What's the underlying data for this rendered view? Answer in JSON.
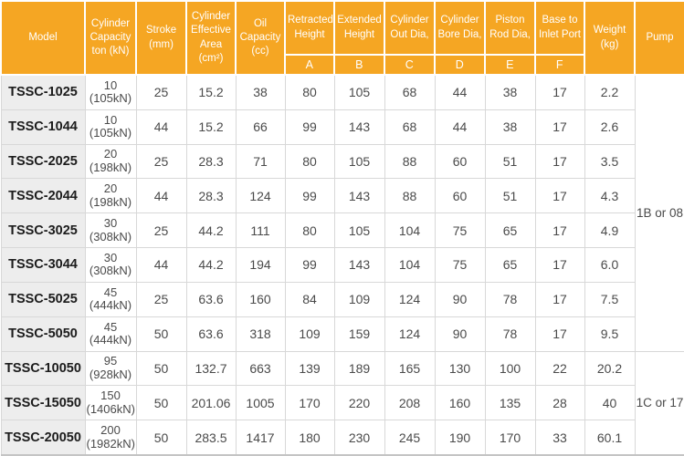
{
  "colors": {
    "header_bg": "#F5A623",
    "header_text": "#FFFFFF",
    "model_col_bg": "#EDEDED",
    "border": "#D8D8D8",
    "body_text": "#4A4A4A",
    "model_text": "#1C1C1C"
  },
  "header": {
    "model": "Model",
    "capacity": "Cylinder Capacity ton (kN)",
    "stroke": "Stroke (mm)",
    "effective_area": "Cylinder Effective Area (cm²)",
    "oil_capacity": "Oil Capacity (cc)",
    "retracted_height": "Retracted Height",
    "extended_height": "Extended Height",
    "cylinder_out_dia": "Cylinder Out Dia,",
    "cylinder_bore_dia": "Cylinder Bore Dia,",
    "piston_rod_dia": "Piston Rod Dia,",
    "base_to_inlet_port": "Base to Inlet Port",
    "weight": "Weight (kg)",
    "pump": "Pump",
    "dim_letters": [
      "A",
      "B",
      "C",
      "D",
      "E",
      "F"
    ]
  },
  "rows": [
    {
      "model": "TSSC-1025",
      "capacity": "10\n(105kN)",
      "values": [
        "25",
        "15.2",
        "38",
        "80",
        "105",
        "68",
        "44",
        "38",
        "17",
        "2.2"
      ]
    },
    {
      "model": "TSSC-1044",
      "capacity": "10\n(105kN)",
      "values": [
        "44",
        "15.2",
        "66",
        "99",
        "143",
        "68",
        "44",
        "38",
        "17",
        "2.6"
      ]
    },
    {
      "model": "TSSC-2025",
      "capacity": "20\n(198kN)",
      "values": [
        "25",
        "28.3",
        "71",
        "80",
        "105",
        "88",
        "60",
        "51",
        "17",
        "3.5"
      ]
    },
    {
      "model": "TSSC-2044",
      "capacity": "20\n(198kN)",
      "values": [
        "44",
        "28.3",
        "124",
        "99",
        "143",
        "88",
        "60",
        "51",
        "17",
        "4.3"
      ]
    },
    {
      "model": "TSSC-3025",
      "capacity": "30\n(308kN)",
      "values": [
        "25",
        "44.2",
        "111",
        "80",
        "105",
        "104",
        "75",
        "65",
        "17",
        "4.9"
      ]
    },
    {
      "model": "TSSC-3044",
      "capacity": "30\n(308kN)",
      "values": [
        "44",
        "44.2",
        "194",
        "99",
        "143",
        "104",
        "75",
        "65",
        "17",
        "6.0"
      ]
    },
    {
      "model": "TSSC-5025",
      "capacity": "45\n(444kN)",
      "values": [
        "25",
        "63.6",
        "160",
        "84",
        "109",
        "124",
        "90",
        "78",
        "17",
        "7.5"
      ]
    },
    {
      "model": "TSSC-5050",
      "capacity": "45\n(444kN)",
      "values": [
        "50",
        "63.6",
        "318",
        "109",
        "159",
        "124",
        "90",
        "78",
        "17",
        "9.5"
      ]
    },
    {
      "model": "TSSC-10050",
      "capacity": "95\n(928kN)",
      "values": [
        "50",
        "132.7",
        "663",
        "139",
        "189",
        "165",
        "130",
        "100",
        "22",
        "20.2"
      ]
    },
    {
      "model": "TSSC-15050",
      "capacity": "150\n(1406kN)",
      "values": [
        "50",
        "201.06",
        "1005",
        "170",
        "220",
        "208",
        "160",
        "135",
        "28",
        "40"
      ]
    },
    {
      "model": "TSSC-20050",
      "capacity": "200\n(1982kN)",
      "values": [
        "50",
        "283.5",
        "1417",
        "180",
        "230",
        "245",
        "190",
        "170",
        "33",
        "60.1"
      ]
    }
  ],
  "pump_groups": [
    {
      "label": "1B or 08",
      "rows": 8
    },
    {
      "label": "1C or 17",
      "rows": 3
    }
  ]
}
